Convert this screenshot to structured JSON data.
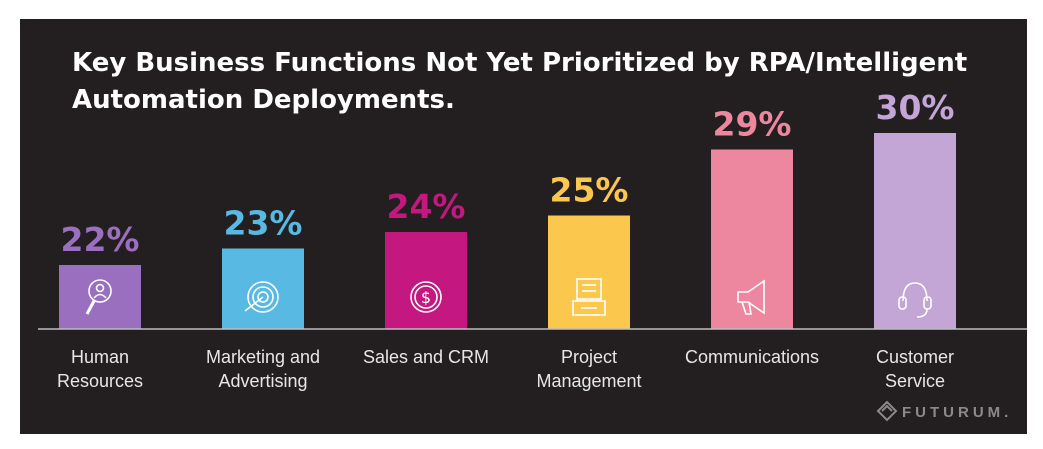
{
  "chart_data": {
    "type": "bar",
    "title_lines": [
      "Key Business Functions Not Yet Prioritized by RPA/Intelligent",
      "Automation Deployments."
    ],
    "categories": [
      [
        "Human",
        "Resources"
      ],
      [
        "Marketing and",
        "Advertising"
      ],
      [
        "Sales and CRM"
      ],
      [
        "Project",
        "Management"
      ],
      [
        "Communications"
      ],
      [
        "Customer",
        "Service"
      ]
    ],
    "values": [
      22,
      23,
      24,
      25,
      29,
      30
    ],
    "value_labels": [
      "22%",
      "23%",
      "24%",
      "25%",
      "29%",
      "30%"
    ],
    "colors": [
      "#9b6fc0",
      "#58b9e2",
      "#c4177f",
      "#fbc74d",
      "#ed87a0",
      "#c3a5d6"
    ],
    "icons": [
      "magnifier-person-icon",
      "target-icon",
      "dollar-coin-icon",
      "clipboard-icon",
      "megaphone-icon",
      "headset-icon"
    ],
    "ylabel": "",
    "xlabel": "",
    "unit": "%"
  },
  "brand": {
    "name": "FUTURUM.",
    "background": "#231f20"
  }
}
